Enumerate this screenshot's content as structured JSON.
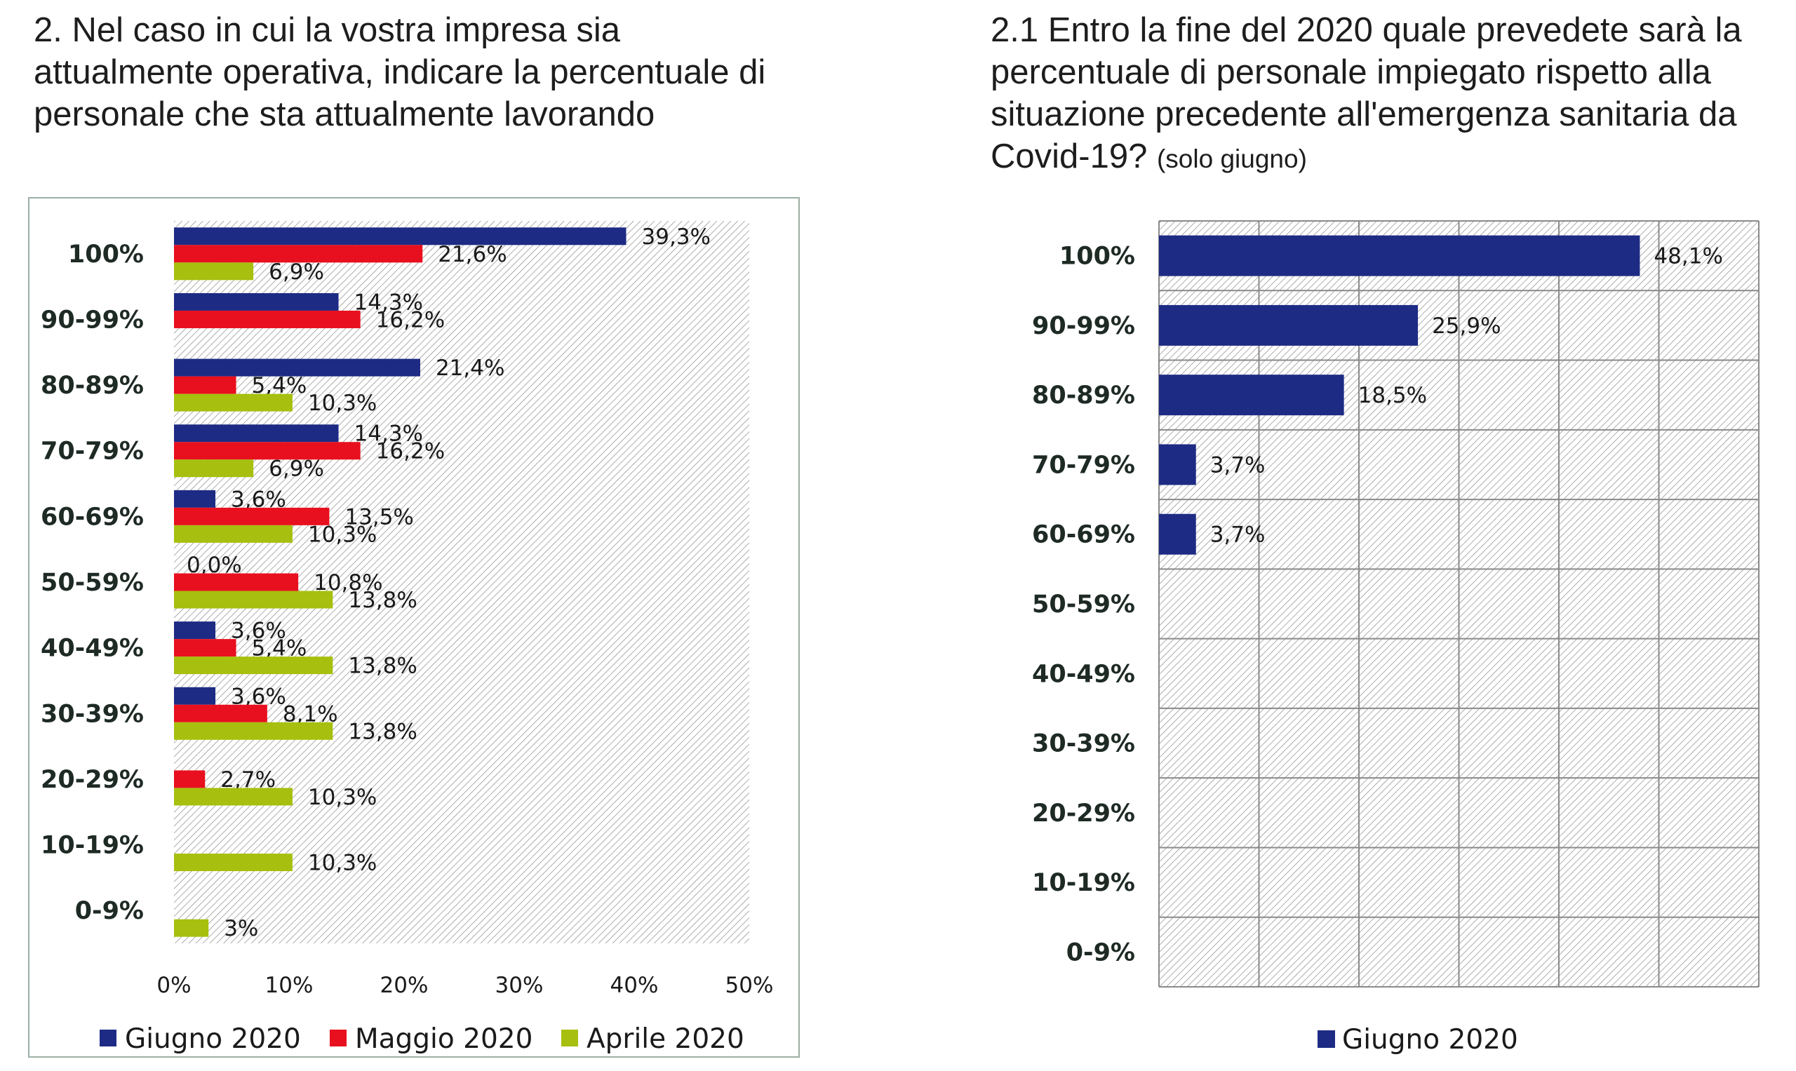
{
  "colors": {
    "giugno": "#1e2b84",
    "maggio": "#e8101e",
    "aprile": "#a7bf0e",
    "grid": "#8a8a8a",
    "frame": "#9ab0a4"
  },
  "titles": {
    "left": "2. Nel caso in cui la vostra impresa sia attualmente operativa, indicare la percentuale di personale che sta attualmente lavorando",
    "right_main": "2.1 Entro la fine del 2020 quale prevedete sarà la percentuale di personale impiegato rispetto alla situazione precedente all'emergenza sanitaria da Covid-19?",
    "right_note": "(solo giugno)"
  },
  "chart_data": [
    {
      "type": "bar",
      "orientation": "horizontal",
      "title": "2. Nel caso in cui la vostra impresa sia attualmente operativa, indicare la percentuale di personale che sta attualmente lavorando",
      "categories": [
        "100%",
        "90-99%",
        "80-89%",
        "70-79%",
        "60-69%",
        "50-59%",
        "40-49%",
        "30-39%",
        "20-29%",
        "10-19%",
        "0-9%"
      ],
      "series": [
        {
          "name": "Giugno 2020",
          "color": "#1e2b84",
          "values": [
            39.3,
            14.3,
            21.4,
            14.3,
            3.6,
            0.0,
            3.6,
            3.6,
            null,
            null,
            null
          ],
          "labels": [
            "39,3%",
            "14,3%",
            "21,4%",
            "14,3%",
            "3,6%",
            "0,0%",
            "3,6%",
            "3,6%",
            "",
            "",
            ""
          ]
        },
        {
          "name": "Maggio 2020",
          "color": "#e8101e",
          "values": [
            21.6,
            16.2,
            5.4,
            16.2,
            13.5,
            10.8,
            5.4,
            8.1,
            2.7,
            null,
            null
          ],
          "labels": [
            "21,6%",
            "16,2%",
            "5,4%",
            "16,2%",
            "13,5%",
            "10,8%",
            "5,4%",
            "8,1%",
            "2,7%",
            "",
            ""
          ]
        },
        {
          "name": "Aprile 2020",
          "color": "#a7bf0e",
          "values": [
            6.9,
            null,
            10.3,
            6.9,
            10.3,
            13.8,
            13.8,
            13.8,
            10.3,
            10.3,
            3
          ],
          "labels": [
            "6,9%",
            "",
            "10,3%",
            "6,9%",
            "10,3%",
            "13,8%",
            "13,8%",
            "13,8%",
            "10,3%",
            "10,3%",
            "3%"
          ]
        }
      ],
      "xlim": [
        0,
        50
      ],
      "xticks": [
        "0%",
        "10%",
        "20%",
        "30%",
        "40%",
        "50%"
      ],
      "legend": "bottom",
      "grid": false
    },
    {
      "type": "bar",
      "orientation": "horizontal",
      "title": "2.1 Entro la fine del 2020 quale prevedete sarà la percentuale di personale impiegato rispetto alla situazione precedente all'emergenza sanitaria da Covid-19? (solo giugno)",
      "categories": [
        "100%",
        "90-99%",
        "80-89%",
        "70-79%",
        "60-69%",
        "50-59%",
        "40-49%",
        "30-39%",
        "20-29%",
        "10-19%",
        "0-9%"
      ],
      "series": [
        {
          "name": "Giugno 2020",
          "color": "#1e2b84",
          "values": [
            48.1,
            25.9,
            18.5,
            3.7,
            3.7,
            null,
            null,
            null,
            null,
            null,
            null
          ],
          "labels": [
            "48,1%",
            "25,9%",
            "18,5%",
            "3,7%",
            "3,7%",
            "",
            "",
            "",
            "",
            "",
            ""
          ]
        }
      ],
      "xlim": [
        0,
        60
      ],
      "xticks": [],
      "legend": "bottom",
      "grid": true
    }
  ]
}
